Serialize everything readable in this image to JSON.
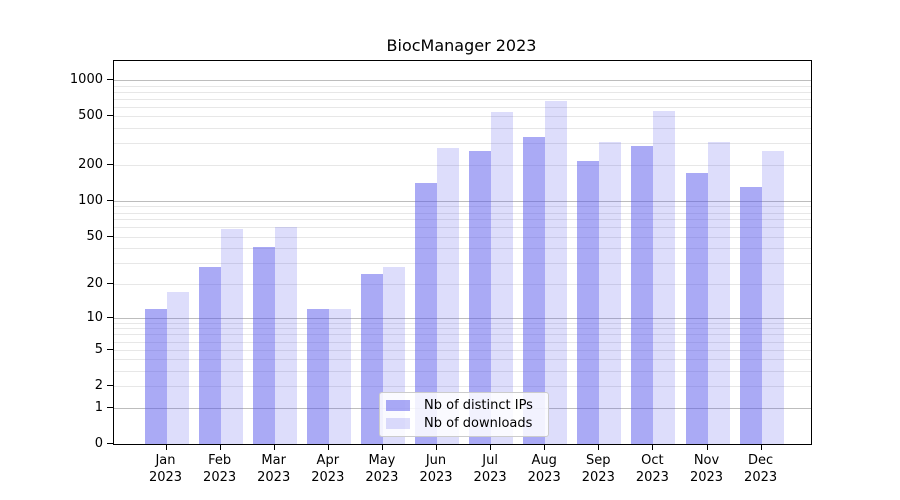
{
  "title": "BiocManager 2023",
  "legend": {
    "items": [
      {
        "label": "Nb of distinct IPs",
        "color": "rgba(85,85,235,0.5)"
      },
      {
        "label": "Nb of downloads",
        "color": "rgba(85,85,235,0.2)"
      }
    ]
  },
  "colors": {
    "bar_distinct_ips": "rgba(85,85,235,0.5)",
    "bar_downloads": "rgba(85,85,235,0.2)",
    "grid_major": "#bdbdbd",
    "grid_minor": "#e7e7e7",
    "axis_spine": "#000000"
  },
  "chart_data": {
    "type": "bar",
    "title": "BiocManager 2023",
    "scale": "log1p",
    "categories": [
      "Jan 2023",
      "Feb 2023",
      "Mar 2023",
      "Apr 2023",
      "May 2023",
      "Jun 2023",
      "Jul 2023",
      "Aug 2023",
      "Sep 2023",
      "Oct 2023",
      "Nov 2023",
      "Dec 2023"
    ],
    "series": [
      {
        "name": "Nb of distinct IPs",
        "values": [
          12,
          28,
          41,
          12,
          24,
          140,
          260,
          340,
          215,
          285,
          170,
          130
        ]
      },
      {
        "name": "Nb of downloads",
        "values": [
          17,
          58,
          60,
          12,
          28,
          275,
          545,
          670,
          310,
          555,
          310,
          260
        ]
      }
    ],
    "xlabel": "",
    "ylabel": "",
    "y_ticks": [
      1000,
      500,
      200,
      100,
      50,
      20,
      10,
      5,
      2,
      1,
      0
    ],
    "ylim": [
      0,
      1434
    ],
    "grid": true,
    "legend_position": "lower center"
  }
}
